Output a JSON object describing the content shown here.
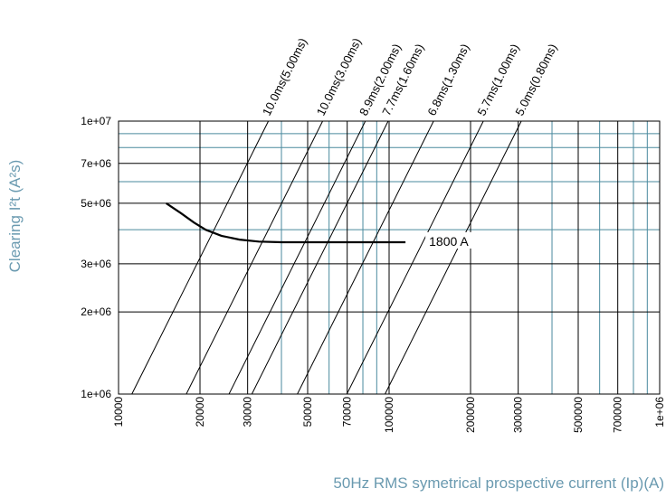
{
  "chart_data": {
    "type": "line",
    "title": "",
    "xlabel": "50Hz RMS symetrical prospective current (Ip)(A)",
    "ylabel": "Clearing I²t (A²s)",
    "x_scale": "log",
    "y_scale": "log",
    "xlim": [
      10000,
      1000000
    ],
    "ylim": [
      1000000,
      10000000
    ],
    "x_ticks": [
      "10000",
      "20000",
      "30000",
      "50000",
      "70000",
      "100000",
      "200000",
      "300000",
      "500000",
      "700000",
      "1e+06"
    ],
    "y_ticks": [
      "1e+06",
      "2e+06",
      "3e+06",
      "5e+06",
      "7e+06",
      "1e+07"
    ],
    "grid": true,
    "series": [
      {
        "name": "1800 A",
        "x": [
          15000,
          17000,
          19000,
          21000,
          24000,
          28000,
          33000,
          40000,
          50000,
          70000,
          100000,
          115000
        ],
        "y": [
          5000000,
          4600000,
          4250000,
          4000000,
          3800000,
          3680000,
          3620000,
          3600000,
          3600000,
          3600000,
          3600000,
          3600000
        ]
      }
    ],
    "power_factor_lines": [
      {
        "label": "10.0ms(5.00ms)",
        "x_at_ymin": 11200,
        "x_at_ymax": 35800
      },
      {
        "label": "10.0ms(3.00ms)",
        "x_at_ymin": 17800,
        "x_at_ymax": 56800
      },
      {
        "label": "8.9ms(2.00ms)",
        "x_at_ymin": 25600,
        "x_at_ymax": 81700
      },
      {
        "label": "7.7ms(1.60ms)",
        "x_at_ymin": 31100,
        "x_at_ymax": 99200
      },
      {
        "label": "6.8ms(1.30ms)",
        "x_at_ymin": 45800,
        "x_at_ymax": 146000
      },
      {
        "label": "5.7ms(1.00ms)",
        "x_at_ymin": 69800,
        "x_at_ymax": 223000
      },
      {
        "label": "5.0ms(0.80ms)",
        "x_at_ymin": 96600,
        "x_at_ymax": 308000
      }
    ],
    "colors": {
      "major_grid": "#000000",
      "minor_grid": "#4a8a9e",
      "curve": "#000000",
      "axis_title": "#6a9ab0"
    }
  }
}
